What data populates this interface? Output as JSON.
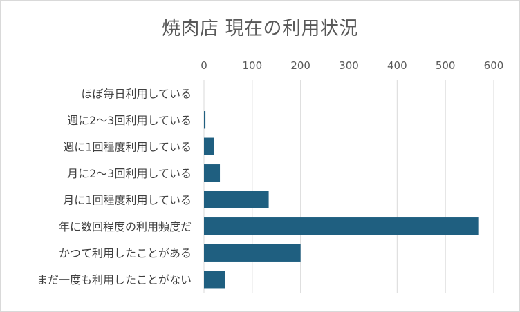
{
  "chart_data": {
    "type": "bar",
    "orientation": "horizontal",
    "title": "焼肉店 現在の利用状況",
    "categories": [
      "ほぼ毎日利用している",
      "週に2～3回利用している",
      "週に1回程度利用している",
      "月に2～3回利用している",
      "月に1回程度利用している",
      "年に数回程度の利用頻度だ",
      "かつて利用したことがある",
      "まだ一度も利用したことがない"
    ],
    "values": [
      0,
      3,
      21,
      33,
      134,
      568,
      200,
      43
    ],
    "xlim": [
      0,
      600
    ],
    "xticks": [
      0,
      100,
      200,
      300,
      400,
      500,
      600
    ],
    "x_axis_position": "top",
    "grid": true,
    "legend": "none",
    "bar_color": "#1f5f80",
    "grid_color": "#d9d9d9"
  }
}
